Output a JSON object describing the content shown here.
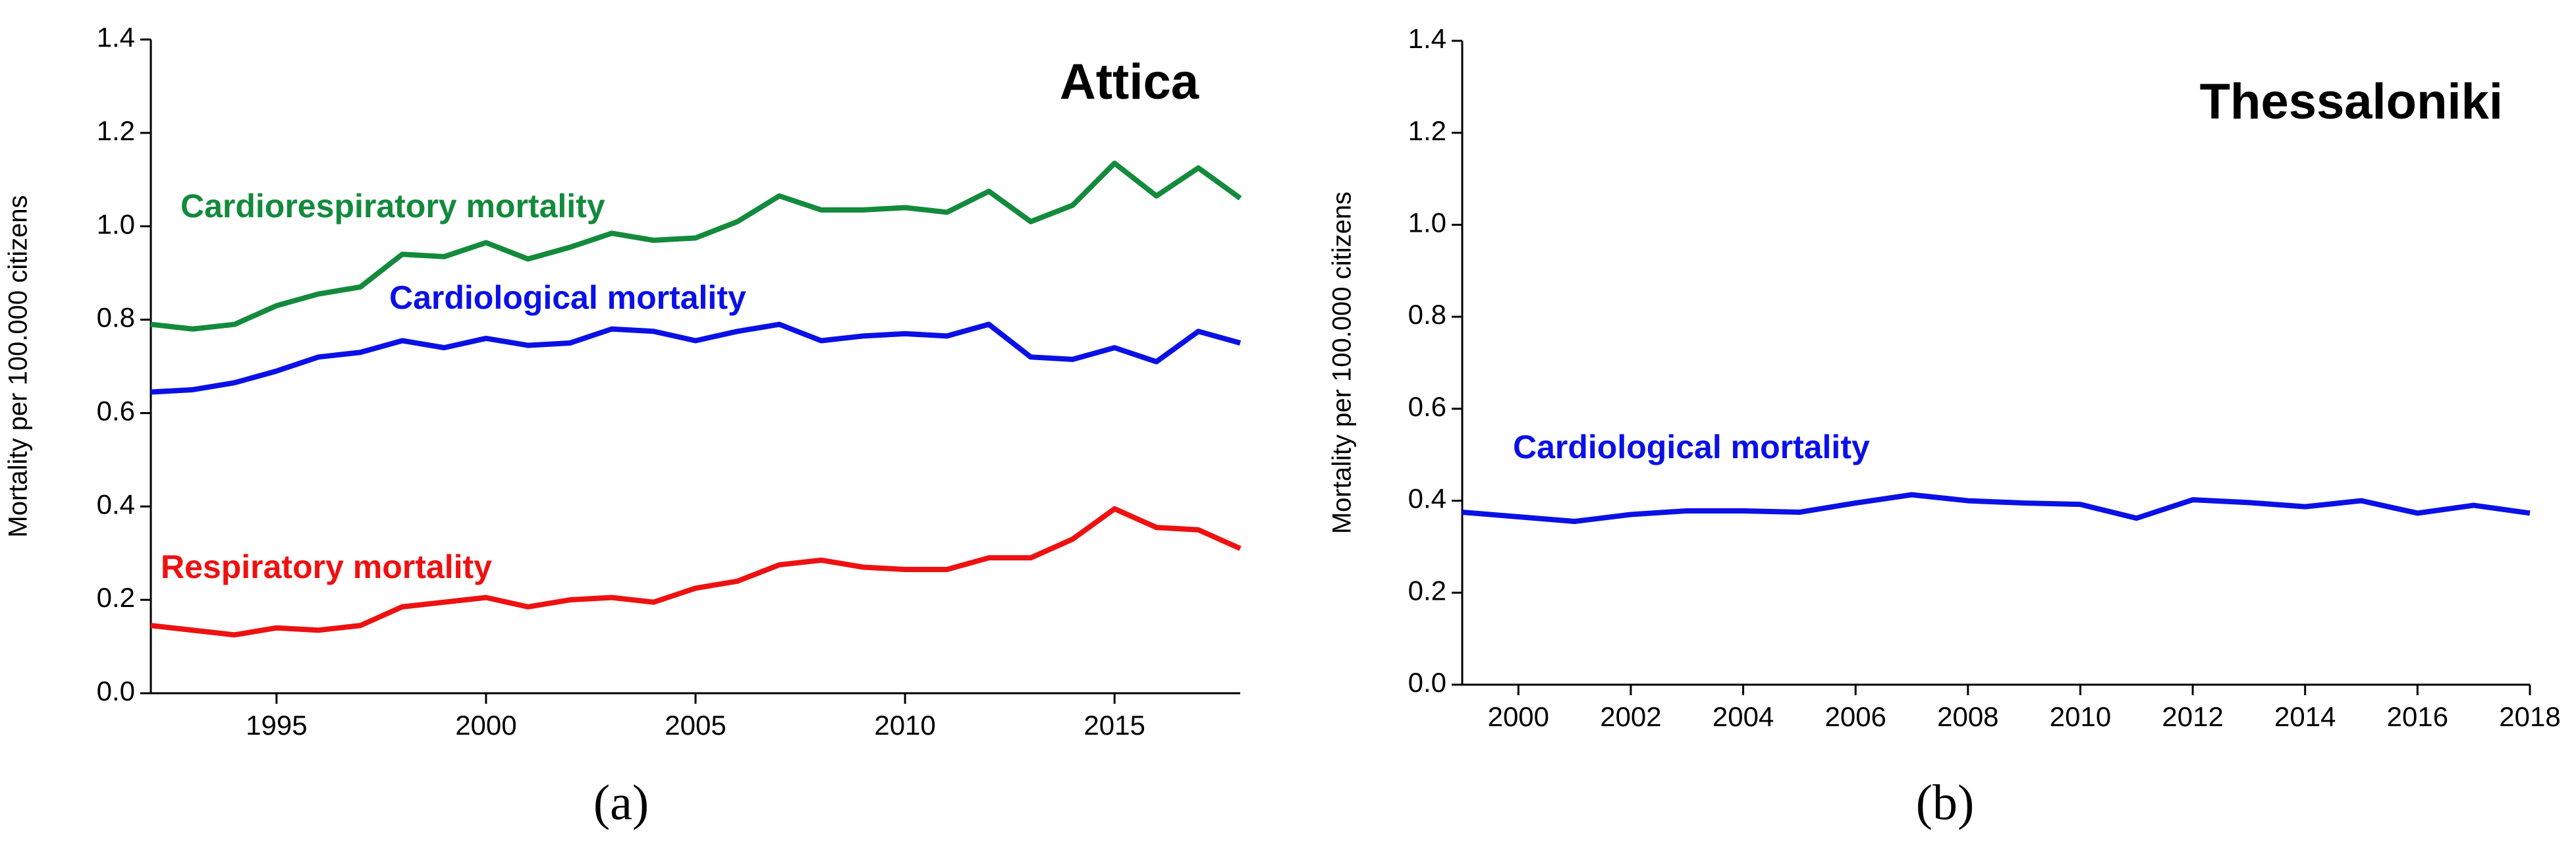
{
  "chart_data": [
    {
      "type": "line",
      "title": "Attica",
      "caption": "(a)",
      "y_label": "Mortality per 100.000 citizens",
      "x": [
        1992,
        1993,
        1994,
        1995,
        1996,
        1997,
        1998,
        1999,
        2000,
        2001,
        2002,
        2003,
        2004,
        2005,
        2006,
        2007,
        2008,
        2009,
        2010,
        2011,
        2012,
        2013,
        2014,
        2015,
        2016,
        2017,
        2018
      ],
      "xlim": [
        1992,
        2018
      ],
      "xticks": [
        1995,
        2000,
        2005,
        2010,
        2015
      ],
      "ylim": [
        0,
        1.4
      ],
      "yticks": [
        {
          "value": 0,
          "label": "0.0"
        },
        0.2,
        0.4,
        0.6,
        0.8,
        {
          "value": 1,
          "label": "1.0"
        },
        1.2,
        1.4
      ],
      "series": [
        {
          "name": "Cardiorespiratory mortality",
          "color": "#138a3c",
          "values": [
            0.79,
            0.78,
            0.79,
            0.83,
            0.855,
            0.87,
            0.94,
            0.935,
            0.965,
            0.93,
            0.955,
            0.985,
            0.97,
            0.975,
            1.01,
            1.065,
            1.035,
            1.035,
            1.04,
            1.03,
            1.075,
            1.01,
            1.045,
            1.135,
            1.065,
            1.125,
            1.06
          ]
        },
        {
          "name": "Cardiological mortality",
          "color": "#0a10e6",
          "values": [
            0.645,
            0.65,
            0.665,
            0.69,
            0.72,
            0.73,
            0.755,
            0.74,
            0.76,
            0.745,
            0.75,
            0.78,
            0.775,
            0.755,
            0.775,
            0.79,
            0.755,
            0.765,
            0.77,
            0.765,
            0.79,
            0.72,
            0.715,
            0.74,
            0.71,
            0.775,
            0.75
          ]
        },
        {
          "name": "Respiratory mortality",
          "color": "#ee1111",
          "values": [
            0.145,
            0.135,
            0.125,
            0.14,
            0.135,
            0.145,
            0.185,
            0.195,
            0.205,
            0.185,
            0.2,
            0.205,
            0.195,
            0.225,
            0.24,
            0.275,
            0.285,
            0.27,
            0.265,
            0.265,
            0.29,
            0.29,
            0.33,
            0.395,
            0.355,
            0.35,
            0.31
          ]
        }
      ]
    },
    {
      "type": "line",
      "title": "Thessaloniki",
      "caption": "(b)",
      "y_label": "Mortality per 100.000 citizens",
      "x": [
        1999,
        2000,
        2001,
        2002,
        2003,
        2004,
        2005,
        2006,
        2007,
        2008,
        2009,
        2010,
        2011,
        2012,
        2013,
        2014,
        2015,
        2016,
        2017,
        2018
      ],
      "xlim": [
        1999,
        2018
      ],
      "xticks": [
        2000,
        2002,
        2004,
        2006,
        2008,
        2010,
        2012,
        2014,
        2016,
        2018
      ],
      "ylim": [
        0,
        1.4
      ],
      "yticks": [
        {
          "value": 0,
          "label": "0.0"
        },
        0.2,
        0.4,
        0.6,
        0.8,
        {
          "value": 1,
          "label": "1.0"
        },
        1.2,
        1.4
      ],
      "series": [
        {
          "name": "Cardiological mortality",
          "color": "#0a10e6",
          "values": [
            0.375,
            0.365,
            0.355,
            0.37,
            0.378,
            0.378,
            0.375,
            0.395,
            0.413,
            0.4,
            0.395,
            0.392,
            0.362,
            0.402,
            0.396,
            0.387,
            0.4,
            0.373,
            0.39,
            0.373
          ]
        }
      ]
    }
  ]
}
